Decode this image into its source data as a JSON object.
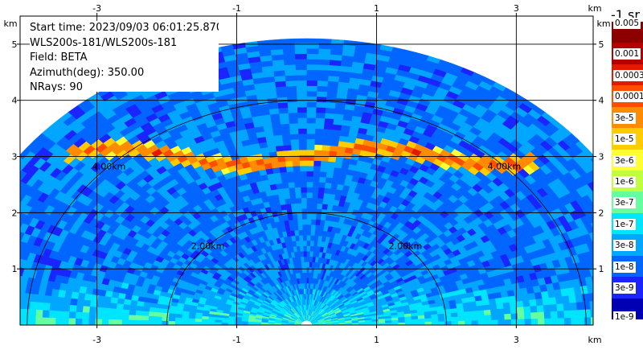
{
  "figure": {
    "info_lines": [
      "Start time: 2023/09/03 06:01:25.870",
      "WLS200s-181/WLS200s-181",
      "Field: BETA",
      "Azimuth(deg): 350.00",
      "NRays: 90"
    ],
    "colorbar_title": "-1 sr"
  },
  "chart_data": {
    "type": "heatmap",
    "subtype": "rhi_range_height_sector",
    "field": "BETA",
    "x_unit_label": "km",
    "y_unit_label": "km",
    "xlim": [
      -4.1,
      4.1
    ],
    "ylim": [
      0,
      5.5
    ],
    "x_ticks": [
      -3,
      -1,
      1,
      3
    ],
    "y_ticks": [
      1,
      2,
      3,
      4,
      5
    ],
    "x_tick_labels": [
      "-3",
      "-1",
      "1",
      "3"
    ],
    "y_tick_labels": [
      "1",
      "2",
      "3",
      "4",
      "5"
    ],
    "grid": true,
    "max_range_km": 5.1,
    "range_rings": [
      {
        "radius_km": 2.0,
        "label": "2.00km"
      },
      {
        "radius_km": 4.0,
        "label": "4.00km"
      }
    ],
    "colorbar": {
      "scale": "log",
      "labels": [
        "0.005",
        "0.001",
        "0.0003",
        "0.0001",
        "3e-5",
        "1e-5",
        "3e-6",
        "1e-6",
        "3e-7",
        "1e-7",
        "3e-8",
        "1e-8",
        "3e-9",
        "1e-9"
      ],
      "colors": [
        "#8c0000",
        "#b50000",
        "#e31a00",
        "#ff4d00",
        "#ff8c00",
        "#ffcc00",
        "#ffff33",
        "#bfff40",
        "#66ffa0",
        "#00e5ff",
        "#00a6ff",
        "#0066ff",
        "#1a24ff",
        "#0000b3"
      ]
    },
    "features": {
      "cloud_layer_height_km": 3.0,
      "cloud_layer_x_range_km": [
        -3.4,
        3.3
      ],
      "near_surface_band_height_km": [
        0.0,
        0.8
      ],
      "background_beta_approx": "1e-8"
    }
  }
}
